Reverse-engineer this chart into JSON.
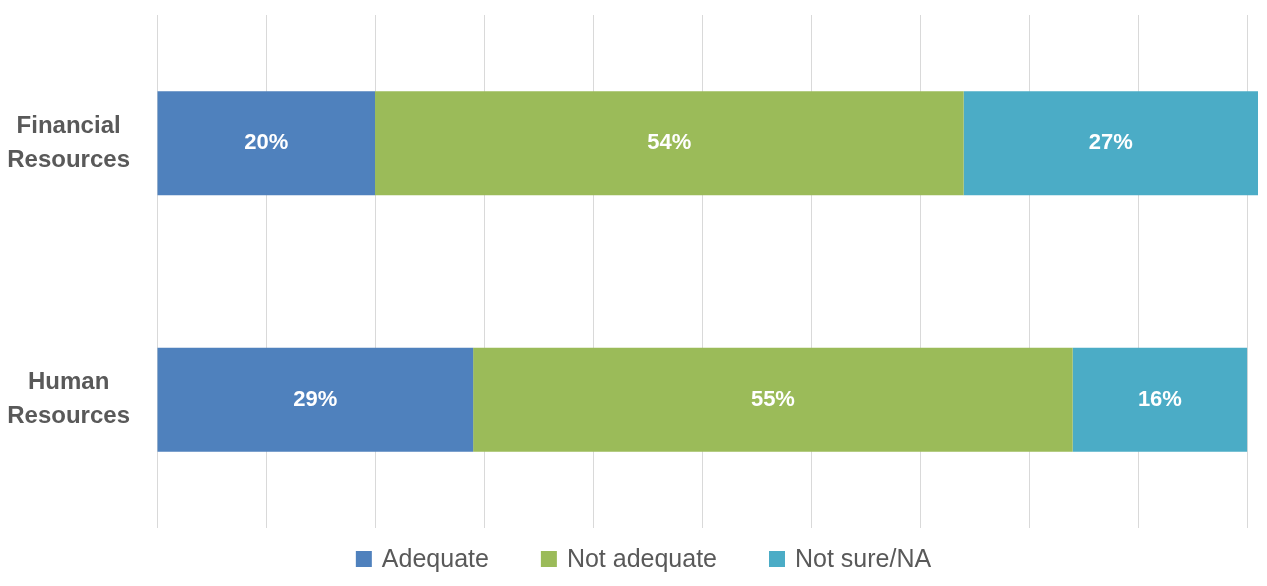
{
  "chart_data": {
    "type": "bar",
    "orientation": "horizontal",
    "stacked": true,
    "categories": [
      "Financial Resources",
      "Human Resources"
    ],
    "series": [
      {
        "name": "Adequate",
        "color": "#4f81bd",
        "values": [
          20,
          29
        ],
        "value_labels": [
          "20%",
          "29%"
        ]
      },
      {
        "name": "Not adequate",
        "color": "#9bbb59",
        "values": [
          54,
          55
        ],
        "value_labels": [
          "54%",
          "55%"
        ]
      },
      {
        "name": "Not sure/NA",
        "color": "#4bacc6",
        "values": [
          27,
          16
        ],
        "value_labels": [
          "27%",
          "16%"
        ]
      }
    ],
    "xlim": [
      0,
      101
    ],
    "xticks": [
      {
        "value": 0,
        "label": null
      },
      {
        "value": 10,
        "label": null
      },
      {
        "value": 20,
        "label": null
      },
      {
        "value": 30,
        "label": null
      },
      {
        "value": 40,
        "label": null
      },
      {
        "value": 50,
        "label": null
      },
      {
        "value": 60,
        "label": null
      },
      {
        "value": 70,
        "label": null
      },
      {
        "value": 80,
        "label": null
      },
      {
        "value": 90,
        "label": null
      },
      {
        "value": 100,
        "label": null
      }
    ],
    "grid": "x",
    "tick_labels": "y",
    "legend": "bottom"
  }
}
